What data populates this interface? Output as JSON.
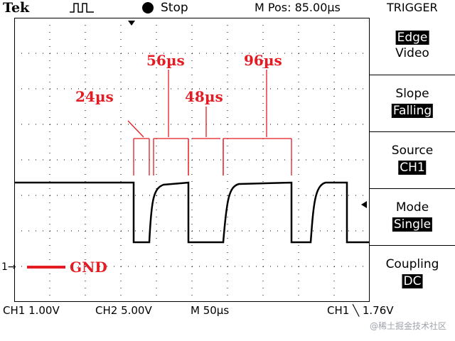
{
  "header": {
    "brand": "Tek",
    "acquisition_state": "Stop",
    "horizontal_position": "M Pos: 85.00µs",
    "menu_title": "TRIGGER"
  },
  "trigger_menu": {
    "items": [
      {
        "label": "Edge",
        "value": "Video",
        "label_highlighted": true,
        "value_highlighted": false
      },
      {
        "label": "Slope",
        "value": "Falling",
        "label_highlighted": false,
        "value_highlighted": true
      },
      {
        "label": "Source",
        "value": "CH1",
        "label_highlighted": false,
        "value_highlighted": true
      },
      {
        "label": "Mode",
        "value": "Single",
        "label_highlighted": false,
        "value_highlighted": true
      },
      {
        "label": "Coupling",
        "value": "DC",
        "label_highlighted": false,
        "value_highlighted": true
      }
    ]
  },
  "annotations": {
    "pulse_widths": [
      "24µs",
      "56µs",
      "48µs",
      "96µs"
    ],
    "ground_label": "GND",
    "ground_marker": "1",
    "color": "#e31b23"
  },
  "status_bar": {
    "ch1_scale": "CH1  1.00V",
    "ch2_scale": "CH2  5.00V",
    "time_scale": "M  50µs",
    "trigger_readout": "CH1  ╲  1.76V"
  },
  "watermark": "@稀土掘金技术社区"
}
